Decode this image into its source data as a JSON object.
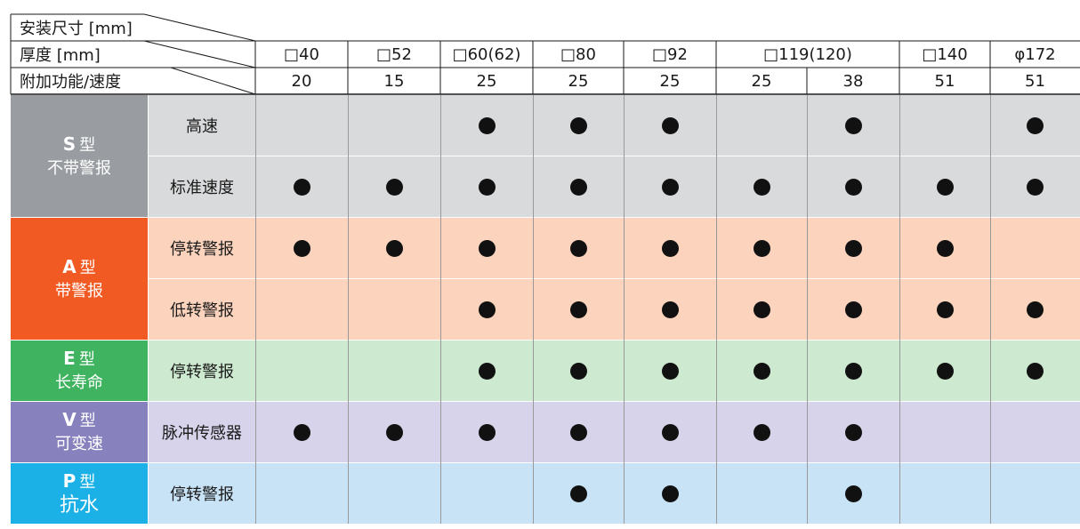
{
  "header": {
    "mount_label": "安装尺寸 [mm]",
    "thickness_label": "厚度 [mm]",
    "feature_label": "附加功能/速度",
    "sizes": [
      {
        "label": "□40",
        "span": 1
      },
      {
        "label": "□52",
        "span": 1
      },
      {
        "label": "□60(62)",
        "span": 1
      },
      {
        "label": "□80",
        "span": 1
      },
      {
        "label": "□92",
        "span": 1
      },
      {
        "label": "□119(120)",
        "span": 2
      },
      {
        "label": "□140",
        "span": 1
      },
      {
        "label": "φ172",
        "span": 1
      }
    ],
    "thicknesses": [
      "20",
      "15",
      "25",
      "25",
      "25",
      "25",
      "38",
      "51",
      "51"
    ]
  },
  "types": [
    {
      "code": "S",
      "suffix": "型",
      "desc": "不带警报",
      "color": "#999da1",
      "light": "#d9dadb",
      "rows": [
        {
          "label": "高速",
          "marks": [
            0,
            0,
            1,
            1,
            1,
            0,
            1,
            0,
            1
          ]
        },
        {
          "label": "标准速度",
          "marks": [
            1,
            1,
            1,
            1,
            1,
            1,
            1,
            1,
            1
          ]
        }
      ]
    },
    {
      "code": "A",
      "suffix": "型",
      "desc": "带警报",
      "color": "#f15a22",
      "light": "#fcd3bc",
      "rows": [
        {
          "label": "停转警报",
          "marks": [
            1,
            1,
            1,
            1,
            1,
            1,
            1,
            1,
            0
          ]
        },
        {
          "label": "低转警报",
          "marks": [
            0,
            0,
            1,
            1,
            1,
            1,
            1,
            1,
            1
          ]
        }
      ]
    },
    {
      "code": "E",
      "suffix": "型",
      "desc": "长寿命",
      "color": "#3fb35f",
      "light": "#cde9d0",
      "rows": [
        {
          "label": "停转警报",
          "marks": [
            0,
            0,
            1,
            1,
            1,
            1,
            1,
            1,
            1
          ]
        }
      ]
    },
    {
      "code": "V",
      "suffix": "型",
      "desc": "可变速",
      "color": "#8781bd",
      "light": "#d6d3ea",
      "rows": [
        {
          "label": "脉冲传感器",
          "marks": [
            1,
            1,
            1,
            1,
            1,
            1,
            1,
            0,
            0
          ]
        }
      ]
    },
    {
      "code": "P",
      "suffix": "型",
      "desc": "抗水",
      "desc_large": true,
      "color": "#1bb1e7",
      "light": "#c8e2f6",
      "rows": [
        {
          "label": "停转警报",
          "marks": [
            0,
            0,
            0,
            1,
            1,
            0,
            1,
            0,
            0
          ]
        }
      ]
    }
  ]
}
